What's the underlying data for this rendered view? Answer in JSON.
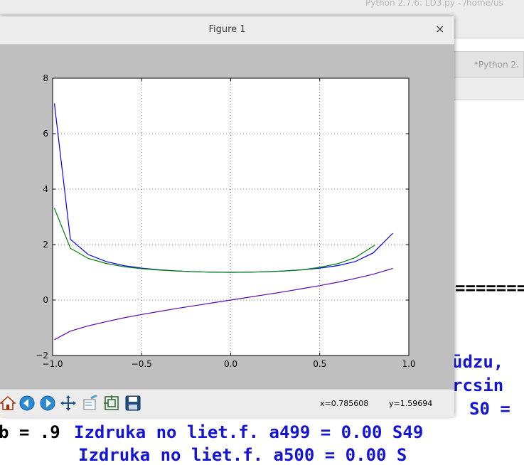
{
  "background": {
    "title": "Python 2.7.6: LD3.py - /home/us",
    "tab_label": "*Python 2.",
    "equals_line": "=======",
    "lines": [
      "ūdzu,",
      "rcsin",
      "S0 =",
      "Izdruka no liet.f. a499 =   0.00 S49"
    ],
    "left_text": "b = .9",
    "partial_line": "Izdruka no liet.f. a500 =   0.00 S"
  },
  "figure": {
    "title": "Figure 1",
    "close_label": "×",
    "toolbar": {
      "home_icon": "home-icon",
      "back_icon": "back-arrow-icon",
      "forward_icon": "forward-arrow-icon",
      "pan_icon": "pan-cross-icon",
      "zoom_icon": "zoom-rect-icon",
      "adjust_icon": "subplots-icon",
      "save_icon": "save-floppy-icon"
    },
    "status_x": "x=0.785608",
    "status_y": "y=1.59694"
  },
  "chart_data": {
    "type": "line",
    "title": "",
    "xlabel": "",
    "ylabel": "",
    "xlim": [
      -1.0,
      1.0
    ],
    "ylim": [
      -2,
      8
    ],
    "xticks": [
      -1.0,
      -0.5,
      0.0,
      0.5,
      1.0
    ],
    "xtick_labels": [
      "−1.0",
      "−0.5",
      "0.0",
      "0.5",
      "1.0"
    ],
    "yticks": [
      -2,
      0,
      2,
      4,
      6,
      8
    ],
    "ytick_labels": [
      "−2",
      "0",
      "2",
      "4",
      "6",
      "8"
    ],
    "grid": true,
    "colors": {
      "blue": "#0000ff",
      "green": "#008000",
      "purple": "#5a0aa8"
    },
    "series": [
      {
        "color": "#0000ff",
        "x": [
          -0.99,
          -0.9,
          -0.8,
          -0.7,
          -0.6,
          -0.5,
          -0.4,
          -0.3,
          -0.2,
          -0.1,
          0.0,
          0.1,
          0.2,
          0.3,
          0.4,
          0.5,
          0.6,
          0.7,
          0.8,
          0.91
        ],
        "y": [
          7.09,
          2.19,
          1.64,
          1.39,
          1.24,
          1.15,
          1.09,
          1.05,
          1.02,
          1.005,
          1.0,
          1.005,
          1.02,
          1.05,
          1.09,
          1.15,
          1.24,
          1.39,
          1.7,
          2.41
        ]
      },
      {
        "color": "#008000",
        "x": [
          -0.99,
          -0.9,
          -0.8,
          -0.7,
          -0.6,
          -0.5,
          -0.4,
          -0.3,
          -0.2,
          -0.1,
          0.0,
          0.1,
          0.2,
          0.3,
          0.4,
          0.5,
          0.6,
          0.7,
          0.81
        ],
        "y": [
          3.31,
          1.87,
          1.5,
          1.32,
          1.2,
          1.13,
          1.08,
          1.05,
          1.02,
          1.005,
          1.0,
          1.005,
          1.02,
          1.05,
          1.09,
          1.18,
          1.31,
          1.53,
          1.98
        ]
      },
      {
        "color": "#5a0aa8",
        "x": [
          -0.99,
          -0.9,
          -0.8,
          -0.7,
          -0.6,
          -0.5,
          -0.4,
          -0.3,
          -0.2,
          -0.1,
          0.0,
          0.1,
          0.2,
          0.3,
          0.4,
          0.5,
          0.6,
          0.7,
          0.8,
          0.91
        ],
        "y": [
          -1.43,
          -1.12,
          -0.93,
          -0.78,
          -0.64,
          -0.52,
          -0.41,
          -0.3,
          -0.2,
          -0.1,
          0.0,
          0.1,
          0.2,
          0.3,
          0.41,
          0.52,
          0.64,
          0.78,
          0.93,
          1.14
        ]
      }
    ]
  }
}
